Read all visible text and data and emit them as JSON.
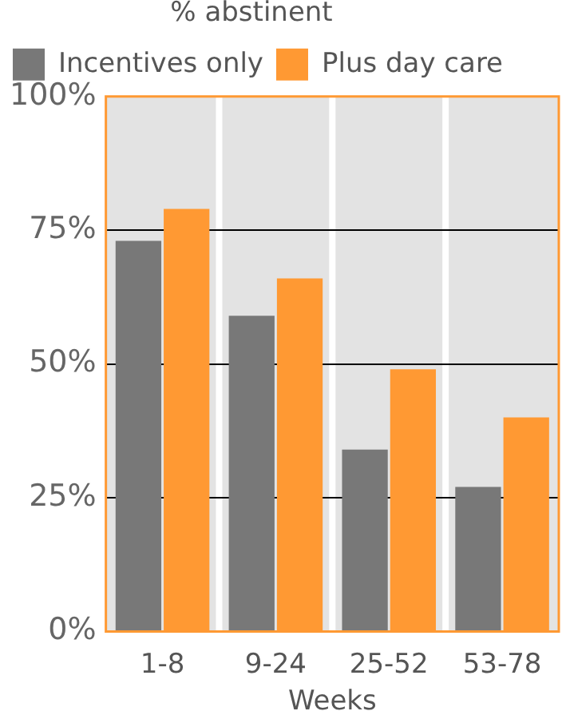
{
  "chart_data": {
    "type": "bar",
    "legend_title": "% abstinent",
    "xlabel": "Weeks",
    "categories": [
      "1-8",
      "9-24",
      "25-52",
      "53-78"
    ],
    "series": [
      {
        "name": "Incentives only",
        "color": "#787878",
        "values": [
          73,
          59,
          34,
          27
        ]
      },
      {
        "name": "Plus day care",
        "color": "#ff9933",
        "values": [
          79,
          66,
          49,
          40
        ]
      }
    ],
    "ylim": [
      0,
      100
    ],
    "yticks": [
      {
        "value": 0,
        "label": "0%"
      },
      {
        "value": 25,
        "label": "25%"
      },
      {
        "value": 50,
        "label": "50%"
      },
      {
        "value": 75,
        "label": "75%"
      },
      {
        "value": 100,
        "label": "100%"
      }
    ],
    "grid": "y",
    "legend": "top left"
  }
}
